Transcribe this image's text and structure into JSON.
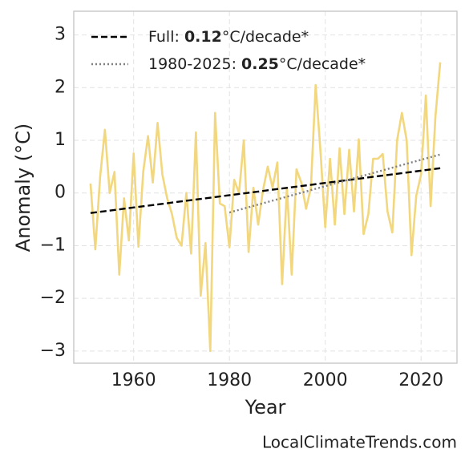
{
  "chart_data": {
    "type": "line",
    "x_label": "Year",
    "y_label": "Anomaly (°C)",
    "source": "LocalClimateTrends.com",
    "x": [
      1951,
      1952,
      1953,
      1954,
      1955,
      1956,
      1957,
      1958,
      1959,
      1960,
      1961,
      1962,
      1963,
      1964,
      1965,
      1966,
      1967,
      1968,
      1969,
      1970,
      1971,
      1972,
      1973,
      1974,
      1975,
      1976,
      1977,
      1978,
      1979,
      1980,
      1981,
      1982,
      1983,
      1984,
      1985,
      1986,
      1987,
      1988,
      1989,
      1990,
      1991,
      1992,
      1993,
      1994,
      1995,
      1996,
      1997,
      1998,
      1999,
      2000,
      2001,
      2002,
      2003,
      2004,
      2005,
      2006,
      2007,
      2008,
      2009,
      2010,
      2011,
      2012,
      2013,
      2014,
      2015,
      2016,
      2017,
      2018,
      2019,
      2020,
      2021,
      2022,
      2023,
      2024
    ],
    "values": [
      0.18,
      -1.07,
      0.3,
      1.2,
      0.0,
      0.4,
      -1.55,
      -0.1,
      -0.9,
      0.75,
      -1.02,
      0.4,
      1.08,
      0.2,
      1.33,
      0.35,
      -0.1,
      -0.4,
      -0.85,
      -1.0,
      0.0,
      -1.15,
      1.15,
      -1.95,
      -0.95,
      -3.0,
      1.52,
      -0.2,
      -0.25,
      -1.03,
      0.25,
      0.0,
      1.0,
      -1.12,
      0.1,
      -0.6,
      0.05,
      0.5,
      0.1,
      0.58,
      -1.73,
      0.1,
      -1.55,
      0.45,
      0.2,
      -0.3,
      0.1,
      2.05,
      0.8,
      -0.65,
      0.65,
      -0.6,
      0.85,
      -0.4,
      0.82,
      -0.35,
      1.02,
      -0.78,
      -0.4,
      0.65,
      0.65,
      0.74,
      -0.35,
      -0.75,
      1.0,
      1.52,
      1.0,
      -1.18,
      -0.05,
      0.35,
      1.85,
      -0.25,
      1.45,
      2.48
    ],
    "color": "#f2d77e",
    "trends": [
      {
        "name": "Full: 0.12°C/decade*",
        "color": "#000000",
        "style": "dashed",
        "x": [
          1951,
          2024
        ],
        "values": [
          -0.38,
          0.47
        ]
      },
      {
        "name": "1980-2025: 0.25°C/decade*",
        "color": "#808080",
        "style": "dotted",
        "x": [
          1980,
          2024
        ],
        "values": [
          -0.37,
          0.73
        ]
      }
    ],
    "xlim": [
      1947.5,
      2027.5
    ],
    "xticks": [
      1960,
      1980,
      2000,
      2020
    ],
    "ylim": [
      -3.23,
      3.45
    ],
    "yticks": [
      {
        "value": -3,
        "label": "−3"
      },
      {
        "value": -2,
        "label": "−2"
      },
      {
        "value": -1,
        "label": "−1"
      },
      0,
      1,
      2,
      3
    ],
    "grid": true,
    "legend": "upper left"
  }
}
